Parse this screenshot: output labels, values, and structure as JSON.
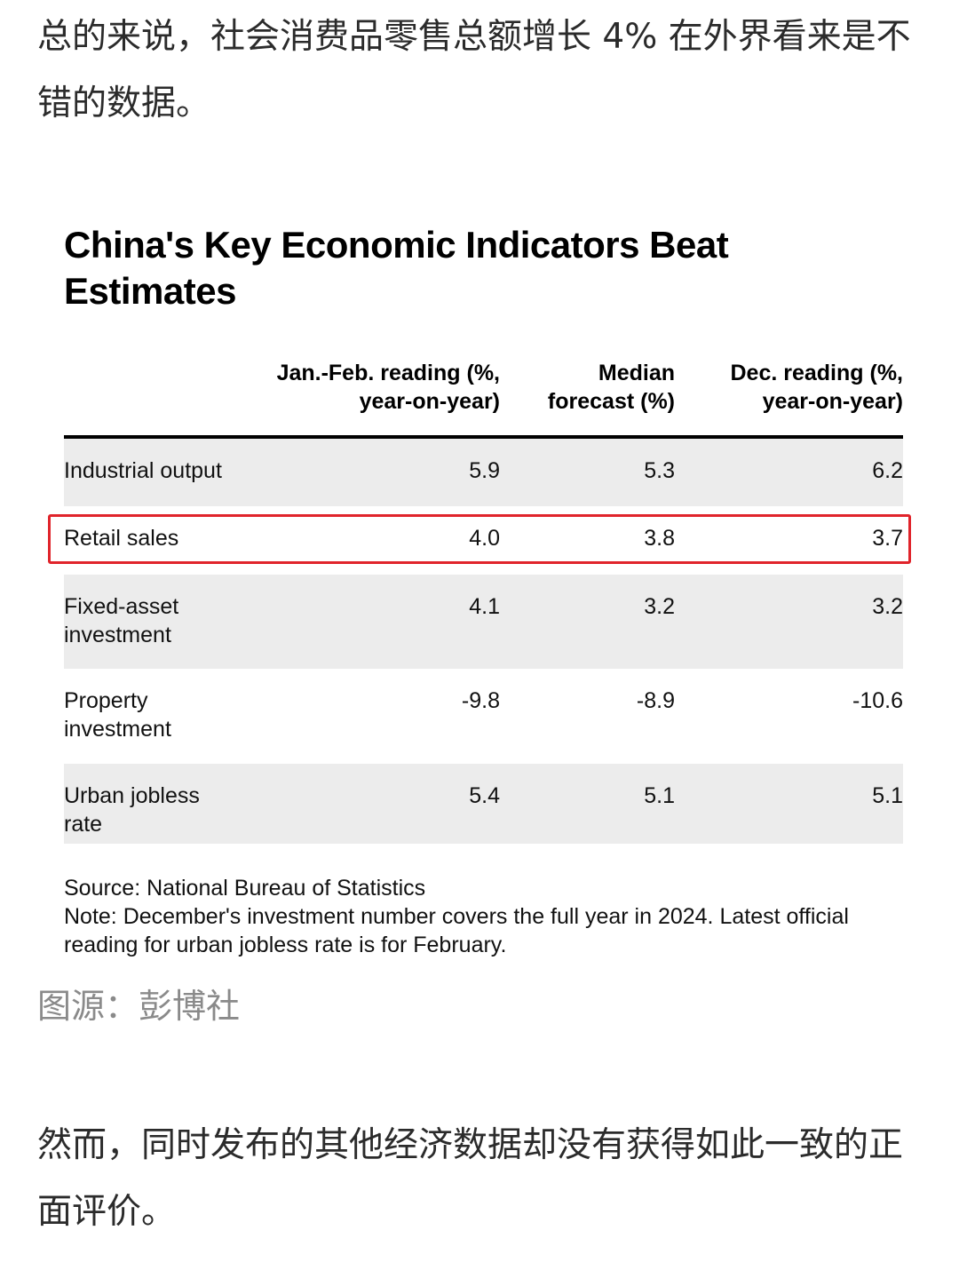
{
  "article": {
    "para1": "总的来说，社会消费品零售总额增长 4% 在外界看来是不错的数据。",
    "caption": "图源：彭博社",
    "para2": "然而，同时发布的其他经济数据却没有获得如此一致的正面评价。"
  },
  "chart_data": {
    "type": "table",
    "title": "China's Key Economic Indicators Beat Estimates",
    "columns": [
      "",
      "Jan.-Feb. reading (%, year-on-year)",
      "Median forecast (%)",
      "Dec. reading (%, year-on-year)"
    ],
    "rows": [
      {
        "label": "Industrial output",
        "values": [
          "5.9",
          "5.3",
          "6.2"
        ]
      },
      {
        "label": "Retail sales",
        "values": [
          "4.0",
          "3.8",
          "3.7"
        ]
      },
      {
        "label": "Fixed-asset investment",
        "values": [
          "4.1",
          "3.2",
          "3.2"
        ]
      },
      {
        "label": "Property investment",
        "values": [
          "-9.8",
          "-8.9",
          "-10.6"
        ]
      },
      {
        "label": "Urban jobless rate",
        "values": [
          "5.4",
          "5.1",
          "5.1"
        ]
      }
    ],
    "highlighted_row": "Retail sales",
    "source": "Source: National Bureau of Statistics",
    "note": "Note: December's investment number covers the full year in 2024. Latest official reading for urban jobless rate is for February."
  },
  "colors": {
    "highlight_border": "#e0242b",
    "row_shade": "#ececec",
    "caption_text": "#8a8a8a"
  }
}
